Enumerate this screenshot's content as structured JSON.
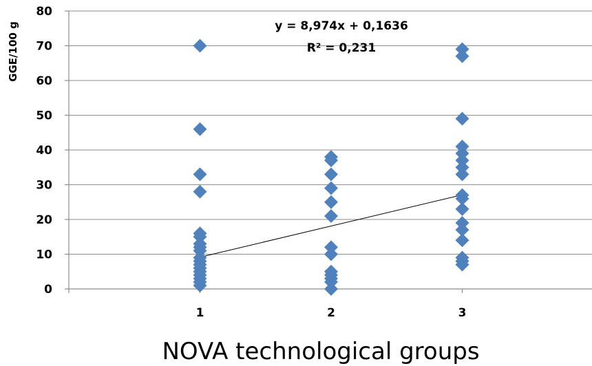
{
  "chart_data": {
    "type": "scatter",
    "title": "",
    "xlabel": "NOVA technological groups",
    "ylabel": "GGE/100 g",
    "xlim": [
      0,
      4
    ],
    "ylim": [
      0,
      80
    ],
    "x_ticks": [
      1,
      2,
      3
    ],
    "y_ticks": [
      0,
      10,
      20,
      30,
      40,
      50,
      60,
      70,
      80
    ],
    "grid": true,
    "marker": "diamond",
    "marker_color": "#4f81bd",
    "series": [
      {
        "points": [
          [
            1,
            70
          ],
          [
            1,
            46
          ],
          [
            1,
            33
          ],
          [
            1,
            28
          ],
          [
            1,
            16
          ],
          [
            1,
            15
          ],
          [
            1,
            13
          ],
          [
            1,
            12
          ],
          [
            1,
            11
          ],
          [
            1,
            9
          ],
          [
            1,
            8
          ],
          [
            1,
            7
          ],
          [
            1,
            6
          ],
          [
            1,
            5
          ],
          [
            1,
            4
          ],
          [
            1,
            3
          ],
          [
            1,
            2
          ],
          [
            1,
            1
          ],
          [
            2,
            38
          ],
          [
            2,
            37
          ],
          [
            2,
            33
          ],
          [
            2,
            29
          ],
          [
            2,
            25
          ],
          [
            2,
            21
          ],
          [
            2,
            12
          ],
          [
            2,
            10
          ],
          [
            2,
            5
          ],
          [
            2,
            4
          ],
          [
            2,
            3
          ],
          [
            2,
            2
          ],
          [
            2,
            0
          ],
          [
            3,
            69
          ],
          [
            3,
            67
          ],
          [
            3,
            49
          ],
          [
            3,
            41
          ],
          [
            3,
            39
          ],
          [
            3,
            37
          ],
          [
            3,
            35
          ],
          [
            3,
            33
          ],
          [
            3,
            27
          ],
          [
            3,
            26
          ],
          [
            3,
            23
          ],
          [
            3,
            19
          ],
          [
            3,
            17
          ],
          [
            3,
            14
          ],
          [
            3,
            9
          ],
          [
            3,
            8
          ],
          [
            3,
            7
          ]
        ]
      }
    ],
    "trendline": {
      "slope": 8.974,
      "intercept": 0.1636,
      "x_range": [
        1,
        3
      ],
      "color": "#000000"
    },
    "annotations": {
      "equation": "y = 8,974x + 0,1636",
      "r_squared": "R² = 0,231"
    }
  }
}
